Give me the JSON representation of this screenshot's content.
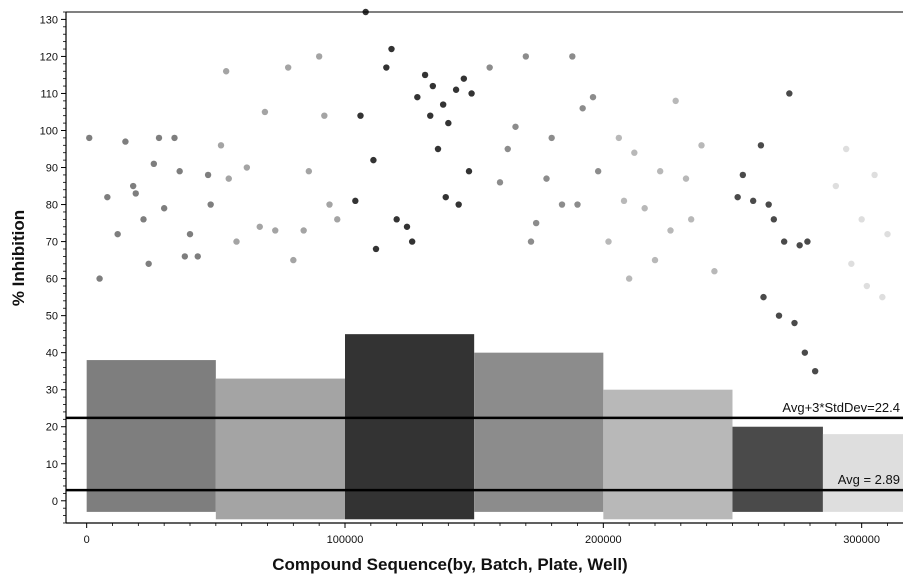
{
  "chart_data": {
    "type": "scatter",
    "title": "",
    "xlabel": "Compound Sequence(by, Batch, Plate, Well)",
    "ylabel": "% Inhibition",
    "xlim": [
      -8000,
      316000
    ],
    "ylim": [
      -6,
      132
    ],
    "x_ticks": [
      0,
      100000,
      200000,
      300000
    ],
    "x_tick_labels": [
      "0",
      "100000",
      "200000",
      "300000"
    ],
    "y_ticks": [
      0,
      10,
      20,
      30,
      40,
      50,
      60,
      70,
      80,
      90,
      100,
      110,
      120,
      130
    ],
    "y_tick_labels": [
      "0",
      "10",
      "20",
      "30",
      "40",
      "50",
      "60",
      "70",
      "80",
      "90",
      "100",
      "110",
      "120",
      "130"
    ],
    "grid": false,
    "legend": "none",
    "reference_lines": [
      {
        "y": 2.89,
        "label": "Avg = 2.89",
        "color": "#000000"
      },
      {
        "y": 22.4,
        "label": "Avg+3*StdDev=22.4",
        "color": "#000000"
      }
    ],
    "series": [
      {
        "x_range": [
          0,
          50000
        ],
        "color": "#7e7e7e",
        "dense_band": [
          -3,
          38
        ],
        "points": [
          [
            1000,
            98
          ],
          [
            8000,
            82
          ],
          [
            12000,
            72
          ],
          [
            15000,
            97
          ],
          [
            18000,
            85
          ],
          [
            19000,
            83
          ],
          [
            22000,
            76
          ],
          [
            26000,
            91
          ],
          [
            28000,
            98
          ],
          [
            30000,
            79
          ],
          [
            34000,
            98
          ],
          [
            36000,
            89
          ],
          [
            40000,
            72
          ],
          [
            43000,
            66
          ],
          [
            47000,
            88
          ],
          [
            48000,
            80
          ],
          [
            5000,
            60
          ],
          [
            24000,
            64
          ],
          [
            38000,
            66
          ]
        ]
      },
      {
        "x_range": [
          50000,
          100000
        ],
        "color": "#a4a4a4",
        "dense_band": [
          -5,
          33
        ],
        "points": [
          [
            52000,
            96
          ],
          [
            54000,
            116
          ],
          [
            55000,
            87
          ],
          [
            62000,
            90
          ],
          [
            67000,
            74
          ],
          [
            69000,
            105
          ],
          [
            73000,
            73
          ],
          [
            78000,
            117
          ],
          [
            84000,
            73
          ],
          [
            86000,
            89
          ],
          [
            90000,
            120
          ],
          [
            92000,
            104
          ],
          [
            94000,
            80
          ],
          [
            97000,
            76
          ],
          [
            58000,
            70
          ],
          [
            80000,
            65
          ]
        ]
      },
      {
        "x_range": [
          100000,
          150000
        ],
        "color": "#333333",
        "dense_band": [
          -5,
          45
        ],
        "points": [
          [
            104000,
            81
          ],
          [
            106000,
            104
          ],
          [
            108000,
            132
          ],
          [
            111000,
            92
          ],
          [
            116000,
            117
          ],
          [
            118000,
            122
          ],
          [
            120000,
            76
          ],
          [
            124000,
            74
          ],
          [
            128000,
            109
          ],
          [
            131000,
            115
          ],
          [
            133000,
            104
          ],
          [
            134000,
            112
          ],
          [
            136000,
            95
          ],
          [
            138000,
            107
          ],
          [
            139000,
            82
          ],
          [
            140000,
            102
          ],
          [
            143000,
            111
          ],
          [
            146000,
            114
          ],
          [
            148000,
            89
          ],
          [
            149000,
            110
          ],
          [
            144000,
            80
          ],
          [
            126000,
            70
          ],
          [
            112000,
            68
          ]
        ]
      },
      {
        "x_range": [
          150000,
          200000
        ],
        "color": "#8c8c8c",
        "dense_band": [
          -3,
          40
        ],
        "points": [
          [
            156000,
            117
          ],
          [
            160000,
            86
          ],
          [
            163000,
            95
          ],
          [
            166000,
            101
          ],
          [
            170000,
            120
          ],
          [
            174000,
            75
          ],
          [
            178000,
            87
          ],
          [
            180000,
            98
          ],
          [
            184000,
            80
          ],
          [
            188000,
            120
          ],
          [
            192000,
            106
          ],
          [
            196000,
            109
          ],
          [
            198000,
            89
          ],
          [
            190000,
            80
          ],
          [
            172000,
            70
          ]
        ]
      },
      {
        "x_range": [
          200000,
          250000
        ],
        "color": "#b8b8b8",
        "dense_band": [
          -5,
          30
        ],
        "points": [
          [
            202000,
            70
          ],
          [
            206000,
            98
          ],
          [
            208000,
            81
          ],
          [
            212000,
            94
          ],
          [
            216000,
            79
          ],
          [
            222000,
            89
          ],
          [
            226000,
            73
          ],
          [
            228000,
            108
          ],
          [
            232000,
            87
          ],
          [
            234000,
            76
          ],
          [
            238000,
            96
          ],
          [
            243000,
            62
          ],
          [
            220000,
            65
          ],
          [
            210000,
            60
          ]
        ]
      },
      {
        "x_range": [
          250000,
          285000
        ],
        "color": "#4a4a4a",
        "dense_band": [
          -3,
          20
        ],
        "points": [
          [
            252000,
            82
          ],
          [
            254000,
            88
          ],
          [
            258000,
            81
          ],
          [
            261000,
            96
          ],
          [
            264000,
            80
          ],
          [
            266000,
            76
          ],
          [
            270000,
            70
          ],
          [
            272000,
            110
          ],
          [
            276000,
            69
          ],
          [
            279000,
            70
          ],
          [
            262000,
            55
          ],
          [
            268000,
            50
          ],
          [
            274000,
            48
          ],
          [
            278000,
            40
          ],
          [
            282000,
            35
          ]
        ]
      },
      {
        "x_range": [
          285000,
          316000
        ],
        "color": "#dedede",
        "dense_band": [
          -3,
          18
        ],
        "points": [
          [
            290000,
            85
          ],
          [
            294000,
            95
          ],
          [
            300000,
            76
          ],
          [
            305000,
            88
          ],
          [
            310000,
            72
          ],
          [
            296000,
            64
          ],
          [
            302000,
            58
          ],
          [
            308000,
            55
          ]
        ]
      }
    ]
  }
}
